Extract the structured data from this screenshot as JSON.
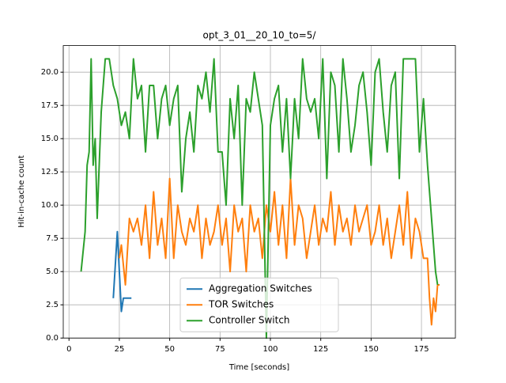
{
  "chart_data": {
    "type": "line",
    "title": "opt_3_01__20_10_to=5/",
    "xlabel": "Time [seconds]",
    "ylabel": "Hit-in-cache count",
    "xlim": [
      -2.85,
      191.85
    ],
    "ylim": [
      0,
      22
    ],
    "xticks": [
      0,
      25,
      50,
      75,
      100,
      125,
      150,
      175
    ],
    "yticks": [
      {
        "value": 0,
        "label": "0.0"
      },
      {
        "value": 2.5,
        "label": "2.5"
      },
      {
        "value": 5,
        "label": "5.0"
      },
      {
        "value": 7.5,
        "label": "7.5"
      },
      {
        "value": 10,
        "label": "10.0"
      },
      {
        "value": 12.5,
        "label": "12.5"
      },
      {
        "value": 15,
        "label": "15.0"
      },
      {
        "value": 17.5,
        "label": "17.5"
      },
      {
        "value": 20,
        "label": "20.0"
      }
    ],
    "grid": true,
    "legend": "lower center",
    "series": [
      {
        "name": "Aggregation Switches",
        "color": "#1f77b4",
        "x": [
          22,
          24,
          25,
          26,
          27,
          28,
          29,
          31
        ],
        "values": [
          3,
          8,
          5,
          2,
          3,
          3,
          3,
          3
        ]
      },
      {
        "name": "TOR Switches",
        "color": "#ff7f0e",
        "x": [
          25,
          26,
          28,
          30,
          32,
          34,
          36,
          38,
          40,
          42,
          44,
          46,
          48,
          50,
          52,
          54,
          56,
          58,
          60,
          62,
          64,
          66,
          68,
          70,
          72,
          74,
          76,
          78,
          80,
          82,
          84,
          86,
          88,
          90,
          92,
          94,
          96,
          98,
          100,
          102,
          104,
          106,
          108,
          110,
          112,
          114,
          116,
          118,
          120,
          122,
          124,
          126,
          128,
          130,
          132,
          134,
          136,
          138,
          140,
          142,
          144,
          146,
          148,
          150,
          152,
          154,
          156,
          158,
          160,
          162,
          164,
          166,
          168,
          170,
          172,
          174,
          176,
          178,
          179,
          180,
          181,
          182,
          183,
          184
        ],
        "values": [
          6,
          7,
          4,
          9,
          8,
          9,
          7,
          10,
          6,
          11,
          7,
          9,
          6,
          12,
          6,
          10,
          8,
          7,
          9,
          8,
          10,
          6,
          9,
          7,
          8,
          10,
          7,
          9,
          5,
          10,
          8,
          9,
          5,
          10,
          8,
          9,
          6,
          10,
          8,
          11,
          7,
          10,
          6,
          12,
          7,
          10,
          9,
          6,
          8,
          10,
          7,
          9,
          8,
          11,
          7,
          10,
          8,
          9,
          7,
          10,
          8,
          9,
          10,
          7,
          8,
          10,
          7,
          9,
          6,
          8,
          10,
          7,
          11,
          6,
          9,
          8,
          6,
          6,
          3,
          1,
          3,
          2,
          4,
          4
        ]
      },
      {
        "name": "Controller Switch",
        "color": "#2ca02c",
        "x": [
          6,
          8,
          9,
          10,
          11,
          12,
          13,
          14,
          16,
          18,
          20,
          22,
          24,
          26,
          28,
          30,
          32,
          34,
          36,
          38,
          40,
          42,
          44,
          46,
          48,
          50,
          52,
          54,
          56,
          58,
          60,
          62,
          64,
          66,
          68,
          70,
          72,
          74,
          76,
          78,
          80,
          82,
          84,
          86,
          88,
          90,
          92,
          94,
          96,
          98,
          100,
          102,
          104,
          106,
          108,
          110,
          112,
          114,
          116,
          118,
          120,
          122,
          124,
          126,
          128,
          130,
          132,
          134,
          136,
          138,
          140,
          142,
          144,
          146,
          148,
          150,
          152,
          154,
          156,
          158,
          160,
          162,
          164,
          166,
          168,
          170,
          172,
          174,
          176,
          178,
          180,
          182,
          183
        ],
        "values": [
          5,
          8,
          13,
          14,
          21,
          13,
          15,
          9,
          17,
          21,
          21,
          19,
          18,
          16,
          17,
          15,
          21,
          18,
          19,
          14,
          19,
          19,
          15,
          18,
          19,
          16,
          18,
          19,
          11,
          15,
          17,
          14,
          19,
          18,
          20,
          17,
          21,
          14,
          14,
          10,
          18,
          15,
          19,
          10,
          18,
          17,
          20,
          18,
          16,
          0,
          16,
          18,
          19,
          14,
          18,
          12,
          18,
          15,
          21,
          18,
          17,
          18,
          15,
          21,
          12,
          20,
          19,
          14,
          21,
          18,
          14,
          16,
          19,
          20,
          17,
          13,
          20,
          21,
          17,
          14,
          19,
          20,
          12,
          21,
          21,
          21,
          21,
          14,
          18,
          13,
          9,
          5,
          4
        ]
      }
    ]
  }
}
